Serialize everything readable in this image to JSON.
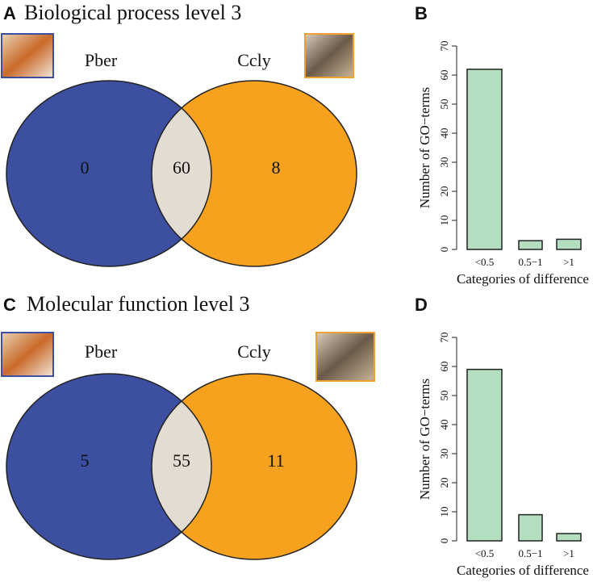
{
  "chart_data": [
    {
      "type": "venn",
      "label": "A",
      "title": "Biological process level 3",
      "sets": [
        {
          "name": "Pber",
          "color": "#3c4fa0",
          "value": 0
        },
        {
          "name": "Ccly",
          "color": "#f6a21f",
          "value": 8
        }
      ],
      "intersection": {
        "color": "#e2dcd2",
        "value": 60
      }
    },
    {
      "type": "bar",
      "label": "B",
      "ylabel": "Number of GO−terms",
      "xlabel": "Categories of difference",
      "categories": [
        "<0.5",
        "0.5−1",
        ">1"
      ],
      "values": [
        62,
        3,
        3.5
      ],
      "color": "#b3dfc0",
      "ylim": [
        0,
        70
      ],
      "yticks": [
        0,
        10,
        20,
        30,
        40,
        50,
        60,
        70
      ]
    },
    {
      "type": "venn",
      "label": "C",
      "title": "Molecular function level 3",
      "sets": [
        {
          "name": "Pber",
          "color": "#3c4fa0",
          "value": 5
        },
        {
          "name": "Ccly",
          "color": "#f6a21f",
          "value": 11
        }
      ],
      "intersection": {
        "color": "#e2dcd2",
        "value": 55
      }
    },
    {
      "type": "bar",
      "label": "D",
      "ylabel": "Number of GO−terms",
      "xlabel": "Categories of difference",
      "categories": [
        "<0.5",
        "0.5−1",
        ">1"
      ],
      "values": [
        59,
        9,
        2.5
      ],
      "color": "#b3dfc0",
      "ylim": [
        0,
        70
      ],
      "yticks": [
        0,
        10,
        20,
        30,
        40,
        50,
        60,
        70
      ]
    }
  ]
}
